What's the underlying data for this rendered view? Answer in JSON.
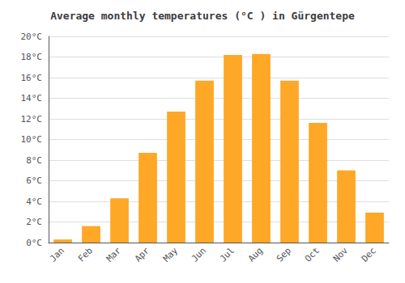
{
  "chart_data": {
    "type": "bar",
    "title": "Average monthly temperatures (°C ) in Gürgentepe",
    "categories": [
      "Jan",
      "Feb",
      "Mar",
      "Apr",
      "May",
      "Jun",
      "Jul",
      "Aug",
      "Sep",
      "Oct",
      "Nov",
      "Dec"
    ],
    "values": [
      0.3,
      1.6,
      4.3,
      8.7,
      12.7,
      15.7,
      18.2,
      18.3,
      15.7,
      11.6,
      7.0,
      2.9
    ],
    "color": "#FFA726",
    "ylim": [
      0,
      20
    ],
    "yticks": [
      {
        "value": 0,
        "label": "0°C"
      },
      {
        "value": 2,
        "label": "2°C"
      },
      {
        "value": 4,
        "label": "4°C"
      },
      {
        "value": 6,
        "label": "6°C"
      },
      {
        "value": 8,
        "label": "8°C"
      },
      {
        "value": 10,
        "label": "10°C"
      },
      {
        "value": 12,
        "label": "12°C"
      },
      {
        "value": 14,
        "label": "14°C"
      },
      {
        "value": 16,
        "label": "16°C"
      },
      {
        "value": 18,
        "label": "18°C"
      },
      {
        "value": 20,
        "label": "20°C"
      }
    ],
    "grid": true
  }
}
